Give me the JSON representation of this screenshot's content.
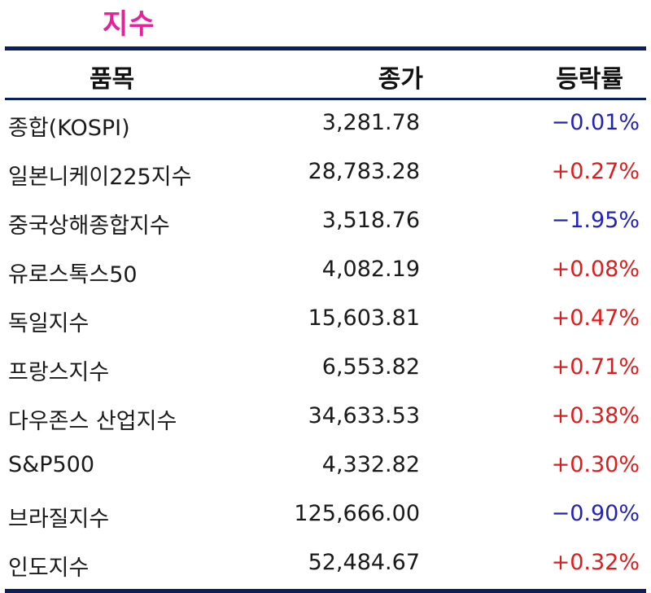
{
  "title": "지수",
  "columns": {
    "item": "품목",
    "close": "종가",
    "change": "등락률"
  },
  "rows": [
    {
      "name": "종합(KOSPI)",
      "close": "3,281.78",
      "change": "−0.01%",
      "direction": "down"
    },
    {
      "name": "일본니케이225지수",
      "close": "28,783.28",
      "change": "+0.27%",
      "direction": "up"
    },
    {
      "name": "중국상해종합지수",
      "close": "3,518.76",
      "change": "−1.95%",
      "direction": "down"
    },
    {
      "name": "유로스톡스50",
      "close": "4,082.19",
      "change": "+0.08%",
      "direction": "up"
    },
    {
      "name": "독일지수",
      "close": "15,603.81",
      "change": "+0.47%",
      "direction": "up"
    },
    {
      "name": "프랑스지수",
      "close": "6,553.82",
      "change": "+0.71%",
      "direction": "up"
    },
    {
      "name": "다우존스 산업지수",
      "close": "34,633.53",
      "change": "+0.38%",
      "direction": "up"
    },
    {
      "name": "S&P500",
      "close": "4,332.82",
      "change": "+0.30%",
      "direction": "up"
    },
    {
      "name": "브라질지수",
      "close": "125,666.00",
      "change": "−0.90%",
      "direction": "down"
    },
    {
      "name": "인도지수",
      "close": "52,484.67",
      "change": "+0.32%",
      "direction": "up"
    }
  ],
  "colors": {
    "title": "#e6219a",
    "rule": "#0b1f5e",
    "up": "#e01b1b",
    "down": "#2323b5"
  }
}
